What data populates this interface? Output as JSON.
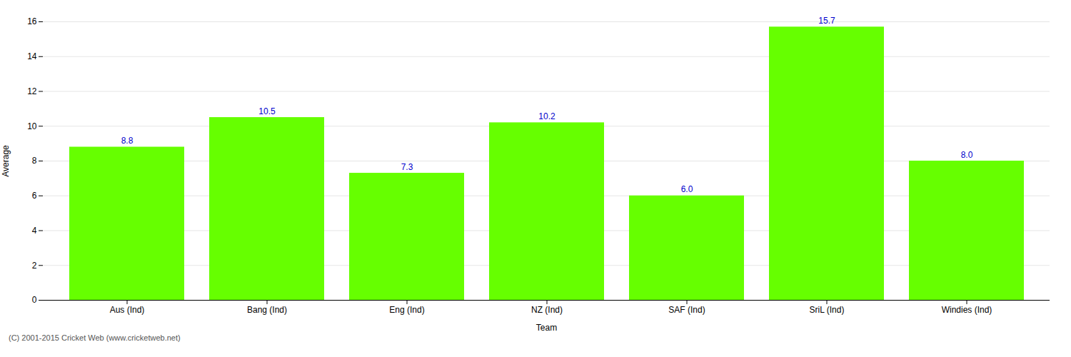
{
  "chart_data": {
    "type": "bar",
    "categories": [
      "Aus (Ind)",
      "Bang (Ind)",
      "Eng (Ind)",
      "NZ (Ind)",
      "SAF (Ind)",
      "SriL (Ind)",
      "Windies (Ind)"
    ],
    "values": [
      8.8,
      10.5,
      7.3,
      10.2,
      6.0,
      15.7,
      8.0
    ],
    "value_labels": [
      "8.8",
      "10.5",
      "7.3",
      "10.2",
      "6.0",
      "15.7",
      "8.0"
    ],
    "data_labels": true,
    "color": "#66ff00",
    "xlabel": "Team",
    "ylabel": "Average",
    "ylim": [
      0,
      16
    ],
    "yticks": [
      0,
      2,
      4,
      6,
      8,
      10,
      12,
      14,
      16
    ],
    "grid": true,
    "caption": "(C) 2001-2015 Cricket Web (www.cricketweb.net)"
  }
}
